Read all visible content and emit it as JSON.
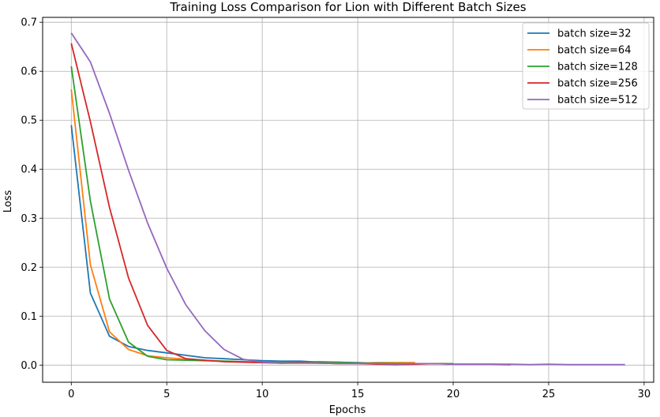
{
  "chart_data": {
    "type": "line",
    "title": "Training Loss Comparison for Lion with Different Batch Sizes",
    "xlabel": "Epochs",
    "ylabel": "Loss",
    "xlim": [
      -1.5,
      30.5
    ],
    "ylim": [
      -0.035,
      0.71
    ],
    "xticks": [
      0,
      5,
      10,
      15,
      20,
      25,
      30
    ],
    "yticks": [
      0.0,
      0.1,
      0.2,
      0.3,
      0.4,
      0.5,
      0.6,
      0.7
    ],
    "xtick_labels": [
      "0",
      "5",
      "10",
      "15",
      "20",
      "25",
      "30"
    ],
    "ytick_labels": [
      "0.0",
      "0.1",
      "0.2",
      "0.3",
      "0.4",
      "0.5",
      "0.6",
      "0.7"
    ],
    "grid": true,
    "legend_position": "top-right",
    "series": [
      {
        "name": "batch size=32",
        "color": "#1f77b4",
        "x": [
          0,
          1,
          2,
          3,
          4,
          5,
          6,
          7,
          8,
          9,
          10,
          11,
          12,
          13,
          14,
          15,
          16,
          17,
          18
        ],
        "y": [
          0.49,
          0.147,
          0.059,
          0.038,
          0.03,
          0.025,
          0.02,
          0.015,
          0.013,
          0.011,
          0.009,
          0.008,
          0.008,
          0.006,
          0.006,
          0.005,
          0.004,
          0.003,
          0.004
        ]
      },
      {
        "name": "batch size=64",
        "color": "#ff7f0e",
        "x": [
          0,
          1,
          2,
          3,
          4,
          5,
          6,
          7,
          8,
          9,
          10,
          11,
          12,
          13,
          14,
          15,
          16,
          17,
          18
        ],
        "y": [
          0.563,
          0.205,
          0.068,
          0.032,
          0.019,
          0.015,
          0.012,
          0.01,
          0.008,
          0.007,
          0.006,
          0.006,
          0.005,
          0.006,
          0.005,
          0.004,
          0.005,
          0.005,
          0.005
        ]
      },
      {
        "name": "batch size=128",
        "color": "#2ca02c",
        "x": [
          0,
          1,
          2,
          3,
          4,
          5,
          6,
          7,
          8,
          9,
          10,
          11,
          12,
          13,
          14,
          15,
          16,
          17,
          18,
          19,
          20
        ],
        "y": [
          0.61,
          0.335,
          0.135,
          0.047,
          0.018,
          0.011,
          0.01,
          0.009,
          0.008,
          0.007,
          0.006,
          0.006,
          0.006,
          0.007,
          0.006,
          0.004,
          0.004,
          0.003,
          0.003,
          0.003,
          0.003
        ]
      },
      {
        "name": "batch size=256",
        "color": "#d62728",
        "x": [
          0,
          1,
          2,
          3,
          4,
          5,
          6,
          7,
          8,
          9,
          10,
          11,
          12,
          13,
          14,
          15,
          16,
          17,
          18,
          19,
          20,
          21,
          22,
          23
        ],
        "y": [
          0.657,
          0.497,
          0.322,
          0.178,
          0.081,
          0.03,
          0.013,
          0.01,
          0.007,
          0.006,
          0.005,
          0.004,
          0.005,
          0.004,
          0.003,
          0.003,
          0.002,
          0.001,
          0.002,
          0.003,
          0.002,
          0.002,
          0.002,
          0.001
        ]
      },
      {
        "name": "batch size=512",
        "color": "#9467bd",
        "x": [
          0,
          1,
          2,
          3,
          4,
          5,
          6,
          7,
          8,
          9,
          10,
          11,
          12,
          13,
          14,
          15,
          16,
          17,
          18,
          19,
          20,
          21,
          22,
          23,
          24,
          25,
          26,
          27,
          28,
          29
        ],
        "y": [
          0.678,
          0.619,
          0.514,
          0.398,
          0.29,
          0.198,
          0.123,
          0.07,
          0.032,
          0.012,
          0.006,
          0.004,
          0.004,
          0.004,
          0.003,
          0.003,
          0.003,
          0.002,
          0.003,
          0.003,
          0.002,
          0.002,
          0.002,
          0.002,
          0.001,
          0.002,
          0.001,
          0.001,
          0.001,
          0.001
        ]
      }
    ]
  }
}
